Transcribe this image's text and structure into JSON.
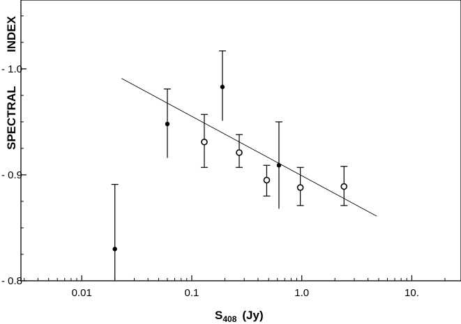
{
  "chart_data": {
    "type": "scatter",
    "title": "",
    "xlabel": {
      "main": "S",
      "sub": "408",
      "unit": "(Jy)"
    },
    "ylabel": {
      "word1": "SPECTRAL",
      "word2": "INDEX"
    },
    "x_scale": "log",
    "xlim": [
      0.0028,
      28
    ],
    "ylim": [
      -0.8,
      -1.065
    ],
    "x_ticks": [
      {
        "value": 0.01,
        "label": "0.01"
      },
      {
        "value": 0.1,
        "label": "0.1"
      },
      {
        "value": 1.0,
        "label": "1.0"
      },
      {
        "value": 10,
        "label": "10."
      }
    ],
    "y_ticks": [
      {
        "value": -1.0,
        "label": "- 1.0"
      },
      {
        "value": -0.9,
        "label": "- 0.9"
      },
      {
        "value": -0.8,
        "label": "- 0.8"
      }
    ],
    "grid": false,
    "series": [
      {
        "marker": "filled",
        "points": [
          {
            "x": 0.02,
            "y": -0.83,
            "err_low": -0.801,
            "err_high": -0.891
          },
          {
            "x": 0.06,
            "y": -0.948,
            "err_low": -0.916,
            "err_high": -0.981
          },
          {
            "x": 0.19,
            "y": -0.983,
            "err_low": -0.951,
            "err_high": -1.017
          },
          {
            "x": 0.62,
            "y": -0.909,
            "err_low": -0.868,
            "err_high": -0.95
          }
        ]
      },
      {
        "marker": "open",
        "points": [
          {
            "x": 0.13,
            "y": -0.931,
            "err_low": -0.907,
            "err_high": -0.957
          },
          {
            "x": 0.27,
            "y": -0.921,
            "err_low": -0.907,
            "err_high": -0.938
          },
          {
            "x": 0.48,
            "y": -0.895,
            "err_low": -0.88,
            "err_high": -0.909
          },
          {
            "x": 0.97,
            "y": -0.888,
            "err_low": -0.871,
            "err_high": -0.907
          },
          {
            "x": 2.42,
            "y": -0.889,
            "err_low": -0.871,
            "err_high": -0.908
          }
        ]
      }
    ],
    "fit_line": {
      "x": [
        0.023,
        4.8
      ],
      "y": [
        -0.991,
        -0.861
      ],
      "style": "solid-thin"
    }
  }
}
